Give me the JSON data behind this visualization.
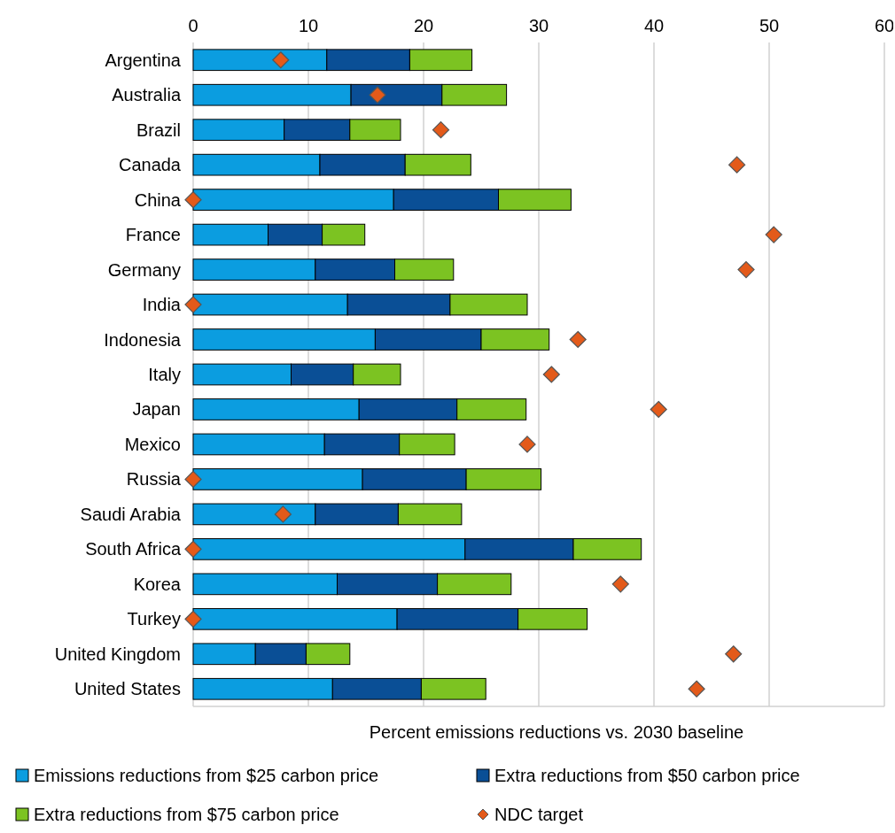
{
  "chart_data": {
    "type": "bar",
    "orientation": "horizontal",
    "stacked": true,
    "xlabel": "Percent emissions reductions vs. 2030 baseline",
    "categories": [
      "Argentina",
      "Australia",
      "Brazil",
      "Canada",
      "China",
      "France",
      "Germany",
      "India",
      "Indonesia",
      "Italy",
      "Japan",
      "Mexico",
      "Russia",
      "Saudi Arabia",
      "South Africa",
      "Korea",
      "Turkey",
      "United Kingdom",
      "United States"
    ],
    "xlim": [
      0,
      60
    ],
    "xticks": [
      0,
      10,
      20,
      30,
      40,
      50,
      60
    ],
    "grid": "x",
    "legend": "bottom",
    "series": [
      {
        "name": "Emissions reductions from $25 carbon price",
        "color": "#0b9de0",
        "values": [
          11.6,
          13.7,
          7.9,
          11.0,
          17.4,
          6.5,
          10.6,
          13.4,
          15.8,
          8.5,
          14.4,
          11.4,
          14.7,
          10.6,
          23.6,
          12.5,
          17.7,
          5.4,
          12.1
        ]
      },
      {
        "name": "Extra reductions from $50 carbon price",
        "color": "#0a4f96",
        "values": [
          7.2,
          7.9,
          5.7,
          7.4,
          9.1,
          4.7,
          6.9,
          8.9,
          9.2,
          5.4,
          8.5,
          6.5,
          9.0,
          7.2,
          9.4,
          8.7,
          10.5,
          4.4,
          7.7
        ]
      },
      {
        "name": "Extra reductions from $75 carbon price",
        "color": "#7cc322",
        "values": [
          5.4,
          5.6,
          4.4,
          5.7,
          6.3,
          3.7,
          5.1,
          6.7,
          5.9,
          4.1,
          6.0,
          4.8,
          6.5,
          5.5,
          5.9,
          6.4,
          6.0,
          3.8,
          5.6
        ]
      },
      {
        "name": "NDC target",
        "type": "scatter",
        "marker": "diamond",
        "color": "#e35a1a",
        "values": [
          7.6,
          16.0,
          21.5,
          47.2,
          0,
          50.4,
          48.0,
          0,
          33.4,
          31.1,
          40.4,
          29.0,
          0,
          7.8,
          0,
          37.1,
          0,
          46.9,
          43.7
        ]
      }
    ]
  }
}
